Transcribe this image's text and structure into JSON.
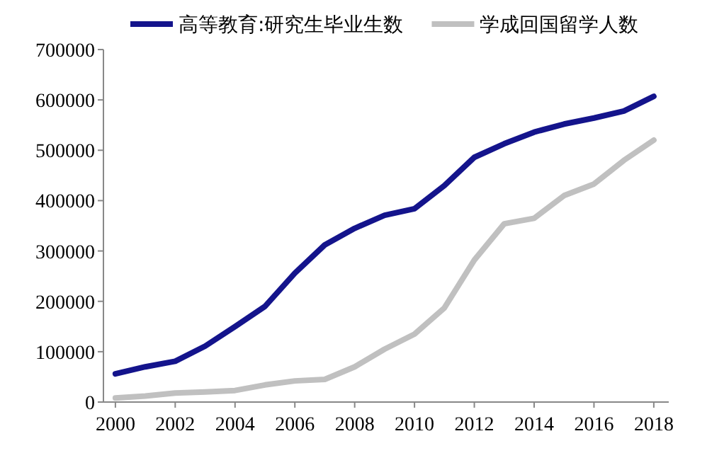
{
  "chart_data": {
    "type": "line",
    "x": [
      2000,
      2001,
      2002,
      2003,
      2004,
      2005,
      2006,
      2007,
      2008,
      2009,
      2010,
      2011,
      2012,
      2013,
      2014,
      2015,
      2016,
      2017,
      2018
    ],
    "series": [
      {
        "name": "高等教育:研究生毕业生数",
        "color": "#14148c",
        "values": [
          56000,
          70000,
          81000,
          111000,
          150000,
          190000,
          256000,
          312000,
          345000,
          371000,
          384000,
          430000,
          486000,
          513000,
          536000,
          552000,
          564000,
          578000,
          607000
        ]
      },
      {
        "name": "学成回国留学人数",
        "color": "#c0c0c0",
        "values": [
          8000,
          12000,
          18000,
          20000,
          23000,
          34000,
          42000,
          45000,
          70000,
          105000,
          135000,
          187000,
          282000,
          354000,
          365000,
          410000,
          433000,
          480000,
          520000
        ]
      }
    ],
    "xlim": [
      1999.6,
      2018.5
    ],
    "xticks": [
      2000,
      2002,
      2004,
      2006,
      2008,
      2010,
      2012,
      2014,
      2016,
      2018
    ],
    "ylim": [
      0,
      700000
    ],
    "yticks": [
      0,
      100000,
      200000,
      300000,
      400000,
      500000,
      600000,
      700000
    ],
    "grid": false,
    "legend": "top",
    "marker": "none",
    "line_style": "solid"
  }
}
